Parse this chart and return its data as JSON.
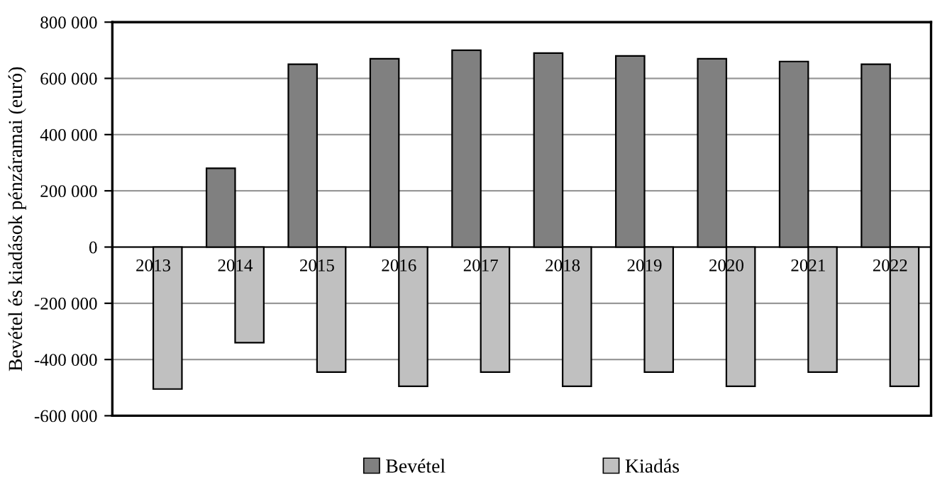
{
  "chart_data": {
    "type": "bar",
    "ylabel": "Bevétel és kiadások pénzáramai (euró)",
    "categories": [
      "2013",
      "2014",
      "2015",
      "2016",
      "2017",
      "2018",
      "2019",
      "2020",
      "2021",
      "2022"
    ],
    "series": [
      {
        "name": "Bevétel",
        "color": "#808080",
        "values": [
          null,
          280000,
          650000,
          670000,
          700000,
          690000,
          680000,
          670000,
          660000,
          650000
        ]
      },
      {
        "name": "Kiadás",
        "color": "#c0c0c0",
        "values": [
          -505000,
          -340000,
          -445000,
          -495000,
          -445000,
          -495000,
          -445000,
          -495000,
          -445000,
          -495000
        ]
      }
    ],
    "ylim": [
      -600000,
      800000
    ],
    "yticks": [
      {
        "value": -600000,
        "label": "-600 000"
      },
      {
        "value": -400000,
        "label": "-400 000"
      },
      {
        "value": -200000,
        "label": "-200 000"
      },
      0,
      {
        "value": 200000,
        "label": "200 000"
      },
      {
        "value": 400000,
        "label": "400 000"
      },
      {
        "value": 600000,
        "label": "600 000"
      },
      {
        "value": 800000,
        "label": "800 000"
      }
    ],
    "grid": "y",
    "legend": "bottom"
  }
}
